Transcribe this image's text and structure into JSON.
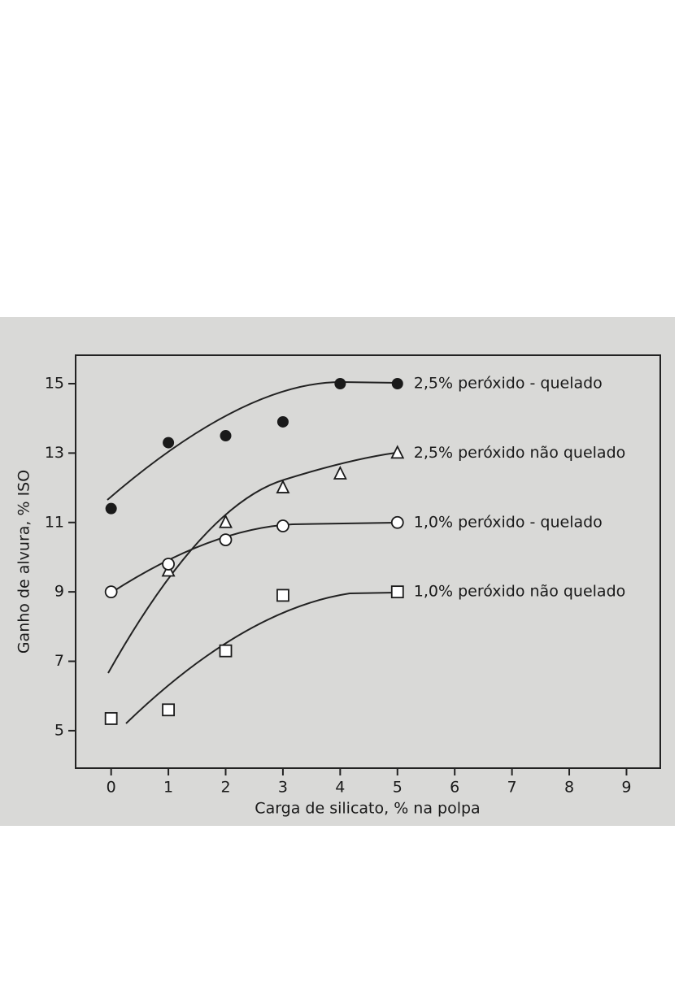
{
  "chart_data": {
    "type": "scatter",
    "ylabel": "Ganho de alvura, % ISO",
    "xlabel": "Carga de silicato, % na polpa",
    "xlim": [
      -0.62,
      9.59
    ],
    "ylim": [
      3.92,
      15.82
    ],
    "xticks": [
      0,
      1,
      2,
      3,
      4,
      5,
      6,
      7,
      8,
      9
    ],
    "yticks": [
      5,
      7,
      9,
      11,
      13,
      15
    ],
    "series": [
      {
        "name": "2,5% peróxido - quelado",
        "color": "#1a1a1a",
        "marker": "filled-circle",
        "x": [
          0,
          1,
          2,
          3,
          4,
          5
        ],
        "values": [
          11.4,
          13.3,
          13.5,
          13.9,
          15,
          15
        ]
      },
      {
        "name": "2,5% peróxido não quelado",
        "color": "#1a1a1a",
        "marker": "triangle",
        "x": [
          1,
          2,
          3,
          4,
          5
        ],
        "values": [
          9.6,
          11,
          12,
          12.4,
          13
        ]
      },
      {
        "name": "1,0% peróxido - quelado",
        "color": "#1a1a1a",
        "marker": "circle",
        "x": [
          0,
          1,
          2,
          3,
          5
        ],
        "values": [
          9,
          9.8,
          10.5,
          10.9,
          11
        ]
      },
      {
        "name": "1,0% peróxido não quelado",
        "color": "#1a1a1a",
        "marker": "square",
        "x": [
          0,
          1,
          2,
          3,
          5
        ],
        "values": [
          5.35,
          5.6,
          7.3,
          8.9,
          9
        ]
      }
    ]
  }
}
